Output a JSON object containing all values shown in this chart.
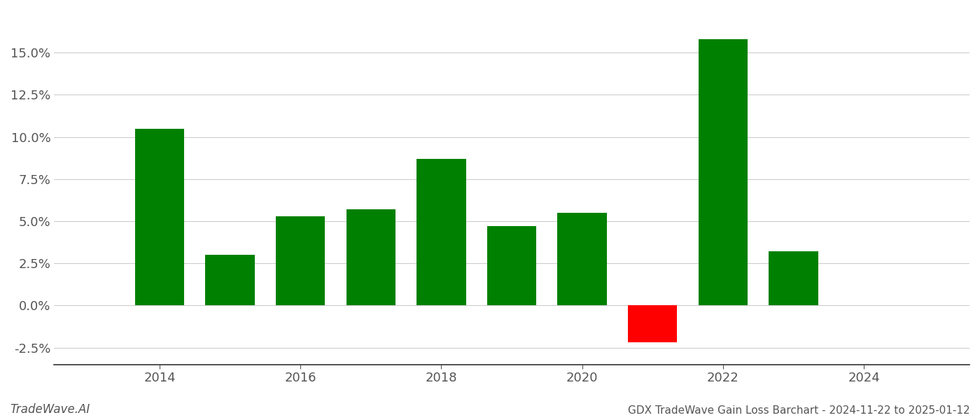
{
  "years": [
    2014,
    2015,
    2016,
    2017,
    2018,
    2019,
    2020,
    2021,
    2022,
    2023
  ],
  "values": [
    0.105,
    0.03,
    0.053,
    0.057,
    0.087,
    0.047,
    0.055,
    -0.022,
    0.158,
    0.032
  ],
  "colors": [
    "#008000",
    "#008000",
    "#008000",
    "#008000",
    "#008000",
    "#008000",
    "#008000",
    "#ff0000",
    "#008000",
    "#008000"
  ],
  "footer_left": "TradeWave.AI",
  "footer_right": "GDX TradeWave Gain Loss Barchart - 2024-11-22 to 2025-01-12",
  "ylim": [
    -0.035,
    0.175
  ],
  "yticks": [
    -0.025,
    0.0,
    0.025,
    0.05,
    0.075,
    0.1,
    0.125,
    0.15
  ],
  "xticks": [
    2014,
    2016,
    2018,
    2020,
    2022,
    2024
  ],
  "xlim": [
    2012.5,
    2025.5
  ],
  "bar_width": 0.7,
  "background_color": "#ffffff",
  "grid_color": "#cccccc",
  "spine_color": "#333333"
}
